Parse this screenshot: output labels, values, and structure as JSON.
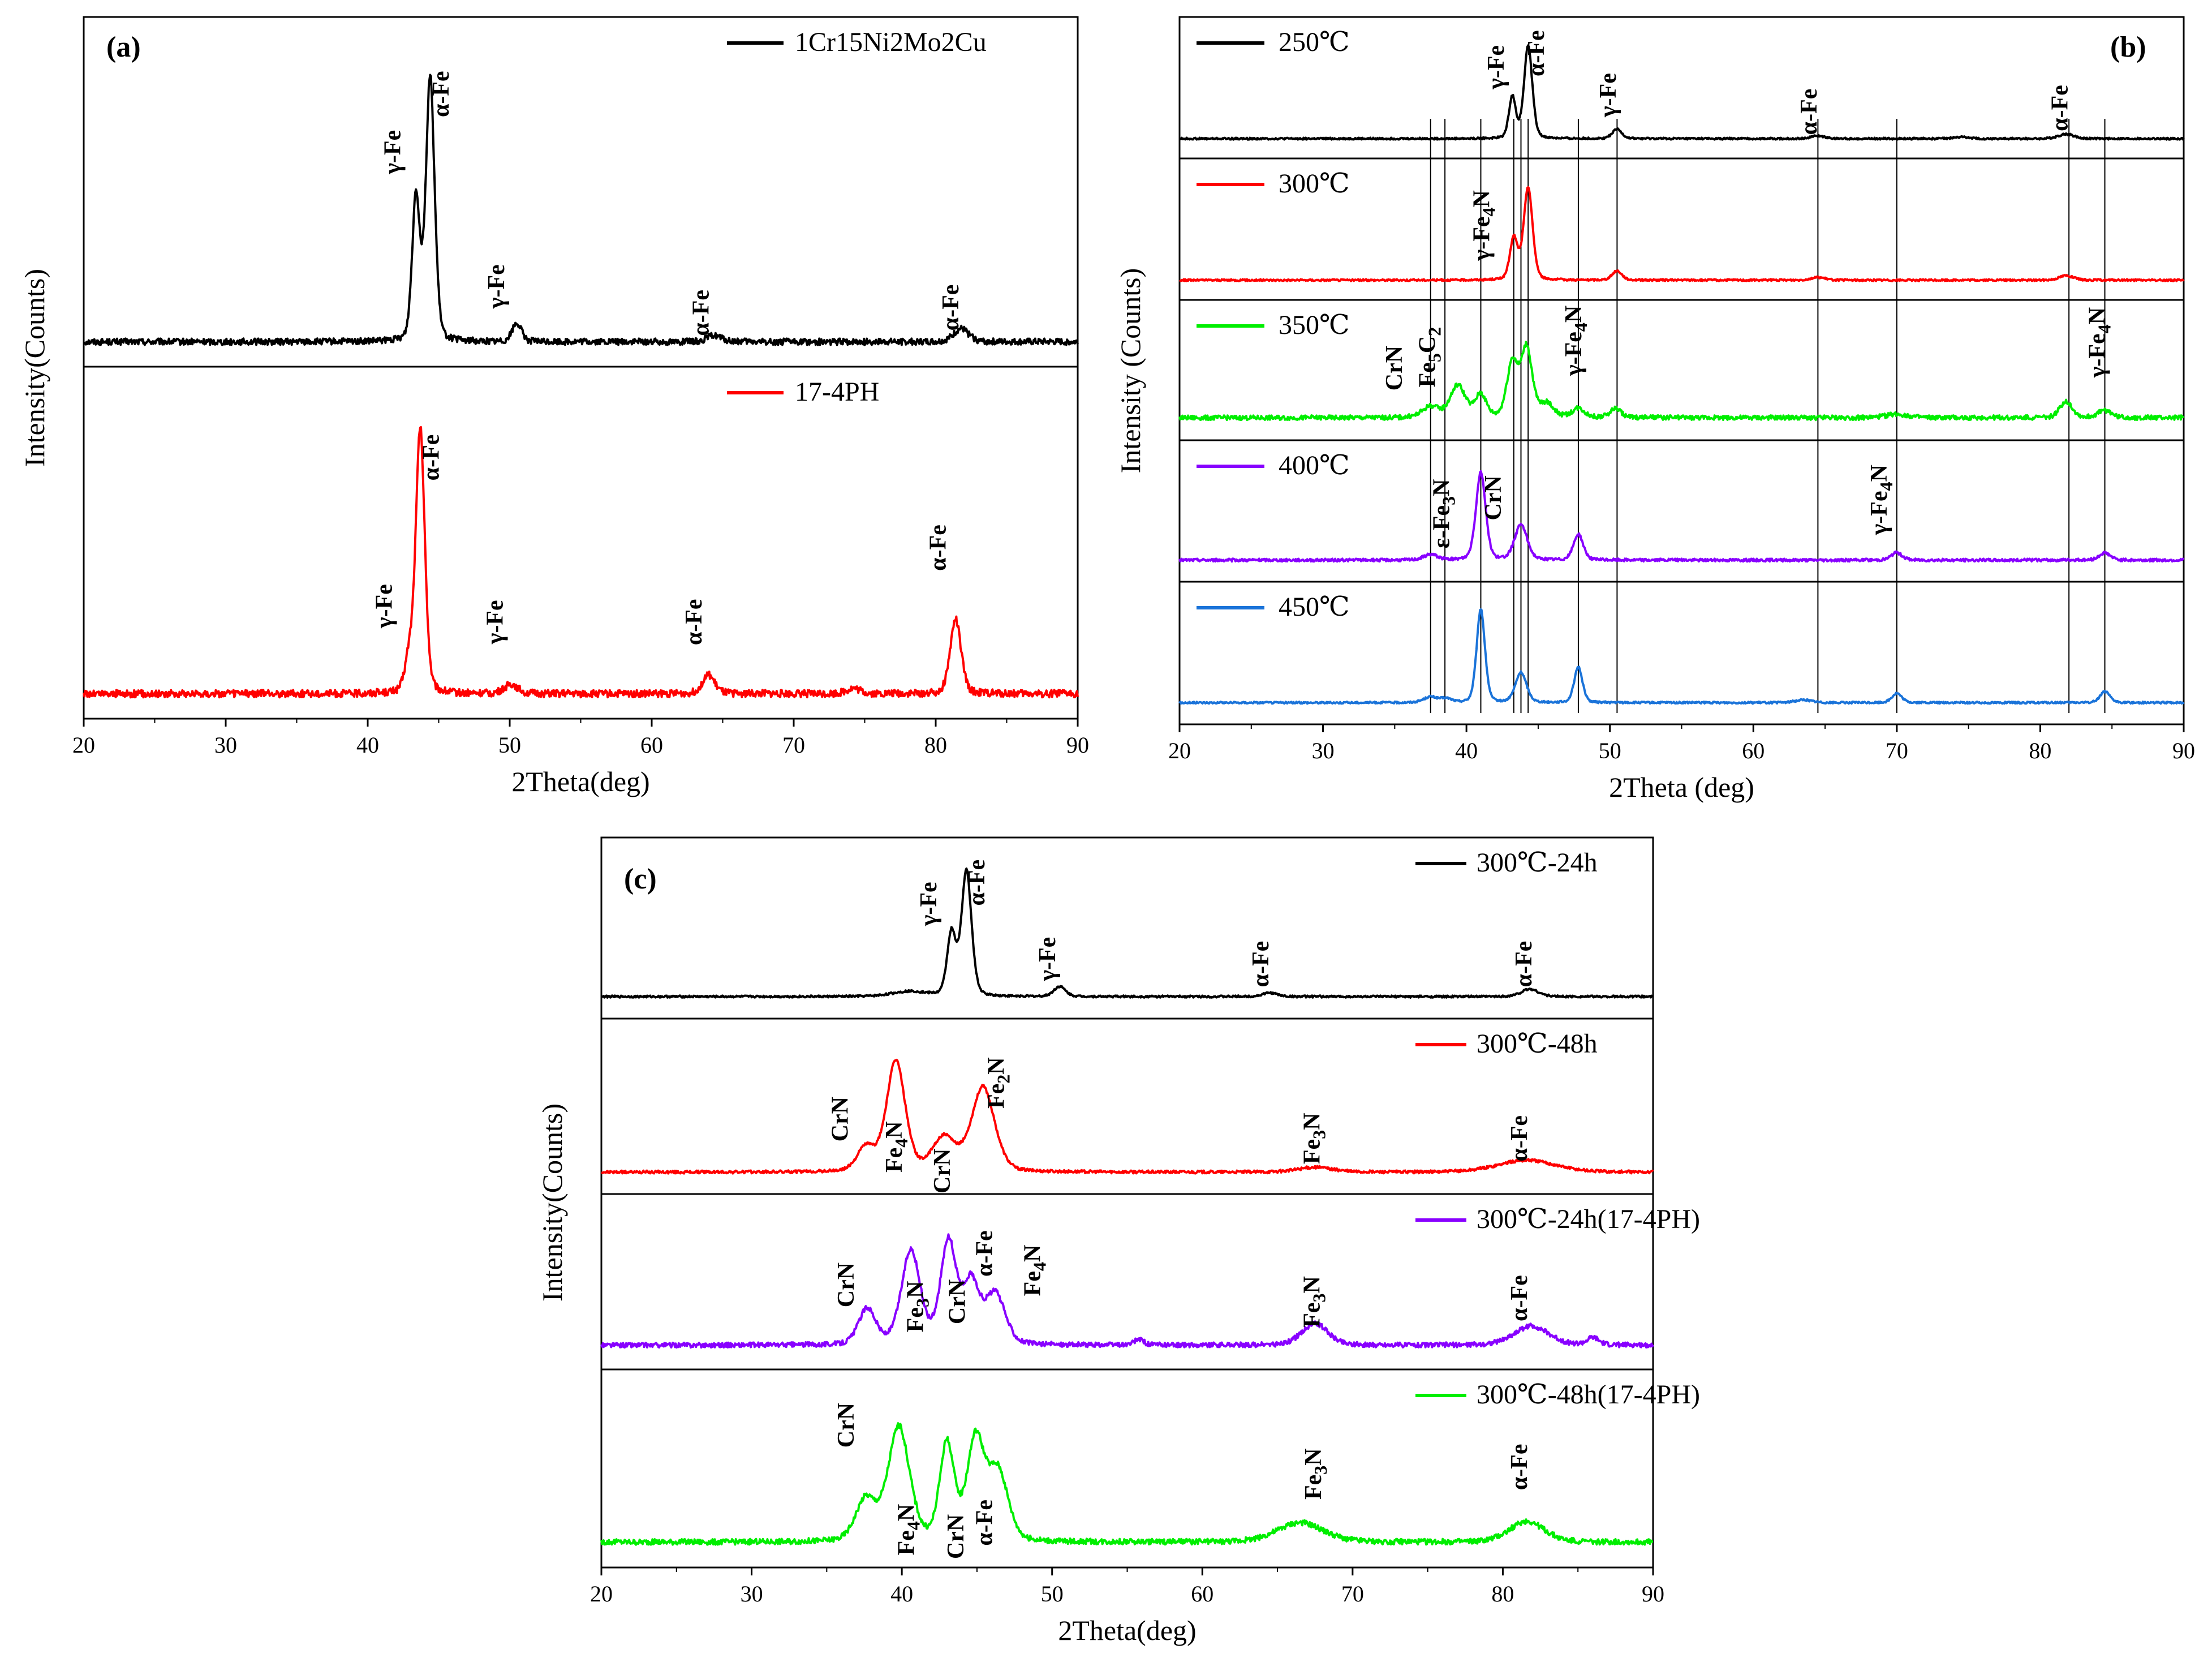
{
  "chart_data": [
    {
      "panel": "(a)",
      "type": "line",
      "xlabel": "2Theta(deg)",
      "ylabel": "Intensity(Counts)",
      "xlim": [
        20,
        90
      ],
      "xticks": [
        20,
        30,
        40,
        50,
        60,
        70,
        80,
        90
      ],
      "series": [
        {
          "name": "1Cr15Ni2Mo2Cu",
          "color": "#000000",
          "baseline": 0.03,
          "noise": 0.012,
          "peaks": [
            [
              43.4,
              0.55,
              0.28
            ],
            [
              44.4,
              1.0,
              0.32
            ],
            [
              50.5,
              0.07,
              0.35
            ],
            [
              64.4,
              0.025,
              0.5
            ],
            [
              81.8,
              0.05,
              0.55
            ]
          ],
          "annotations": [
            {
              "text": "γ-Fe",
              "x": 42.3,
              "level": 0.75,
              "rotate": -90
            },
            {
              "text": "α-Fe",
              "x": 45.7,
              "level": 0.97,
              "rotate": -90
            },
            {
              "text": "γ-Fe",
              "x": 49.6,
              "level": 0.24,
              "rotate": -90
            },
            {
              "text": "α-Fe",
              "x": 64.0,
              "level": 0.14,
              "rotate": -90
            },
            {
              "text": "α-Fe",
              "x": 81.6,
              "level": 0.16,
              "rotate": -90
            }
          ]
        },
        {
          "name": "17-4PH",
          "color": "#ff0000",
          "baseline": 0.03,
          "noise": 0.014,
          "peaks": [
            [
              42.9,
              0.12,
              0.3
            ],
            [
              43.7,
              1.0,
              0.33
            ],
            [
              50.1,
              0.035,
              0.5
            ],
            [
              64.0,
              0.07,
              0.45
            ],
            [
              74.2,
              0.02,
              0.5
            ],
            [
              81.4,
              0.28,
              0.4
            ]
          ],
          "annotations": [
            {
              "text": "γ-Fe",
              "x": 41.7,
              "level": 0.36,
              "rotate": -90
            },
            {
              "text": "α-Fe",
              "x": 45.0,
              "level": 0.92,
              "rotate": -90
            },
            {
              "text": "γ-Fe",
              "x": 49.5,
              "level": 0.3,
              "rotate": -90
            },
            {
              "text": "α-Fe",
              "x": 63.5,
              "level": 0.3,
              "rotate": -90
            },
            {
              "text": "α-Fe",
              "x": 80.7,
              "level": 0.58,
              "rotate": -90
            }
          ]
        }
      ]
    },
    {
      "panel": "(b)",
      "type": "line",
      "xlabel": "2Theta (deg)",
      "ylabel": "Intensity (Counts)",
      "xlim": [
        20,
        90
      ],
      "xticks": [
        20,
        30,
        40,
        50,
        60,
        70,
        80,
        90
      ],
      "reference_lines_2theta": [
        37.5,
        38.5,
        41.0,
        43.3,
        43.8,
        44.3,
        47.8,
        50.5,
        64.5,
        70.0,
        82.0,
        84.5
      ],
      "series": [
        {
          "name": "250℃",
          "color": "#000000",
          "baseline": 0.03,
          "noise": 0.01,
          "peaks": [
            [
              43.2,
              0.45,
              0.25
            ],
            [
              44.3,
              1.0,
              0.3
            ],
            [
              50.5,
              0.1,
              0.35
            ],
            [
              64.5,
              0.03,
              0.5
            ],
            [
              74.5,
              0.02,
              0.5
            ],
            [
              81.8,
              0.05,
              0.55
            ]
          ],
          "annotations": [
            {
              "text": "γ-Fe",
              "x": 42.6,
              "level": 0.8,
              "rotate": -90
            },
            {
              "text": "α-Fe",
              "x": 45.4,
              "level": 0.95,
              "rotate": -90
            },
            {
              "text": "γ-Fe",
              "x": 50.4,
              "level": 0.5,
              "rotate": -90
            },
            {
              "text": "α-Fe",
              "x": 64.4,
              "level": 0.32,
              "rotate": -90
            },
            {
              "text": "α-Fe",
              "x": 81.9,
              "level": 0.36,
              "rotate": -90
            }
          ]
        },
        {
          "name": "300℃",
          "color": "#ff0000",
          "baseline": 0.03,
          "noise": 0.01,
          "peaks": [
            [
              43.3,
              0.45,
              0.28
            ],
            [
              44.3,
              1.0,
              0.32
            ],
            [
              50.5,
              0.1,
              0.35
            ],
            [
              64.5,
              0.03,
              0.5
            ],
            [
              81.8,
              0.05,
              0.5
            ]
          ],
          "annotations": [
            {
              "text": "γ-Fe4N",
              "x": 41.6,
              "level": 0.62,
              "rotate": -90
            }
          ]
        },
        {
          "name": "350℃",
          "color": "#00ee00",
          "baseline": 0.06,
          "noise": 0.025,
          "peaks": [
            [
              37.5,
              0.12,
              0.6
            ],
            [
              39.4,
              0.35,
              0.55
            ],
            [
              41.0,
              0.25,
              0.4
            ],
            [
              43.2,
              0.6,
              0.4
            ],
            [
              44.2,
              0.75,
              0.4
            ],
            [
              45.6,
              0.15,
              0.5
            ],
            [
              47.8,
              0.1,
              0.45
            ],
            [
              50.4,
              0.1,
              0.4
            ],
            [
              70.0,
              0.04,
              0.8
            ],
            [
              81.8,
              0.18,
              0.45
            ],
            [
              84.5,
              0.08,
              0.5
            ]
          ],
          "annotations": [
            {
              "text": "CrN",
              "x": 35.5,
              "level": 0.6,
              "rotate": -90
            },
            {
              "text": "Fe5C2",
              "x": 37.8,
              "level": 0.72,
              "rotate": -90
            },
            {
              "text": "γ-Fe4N",
              "x": 48.0,
              "level": 0.9,
              "rotate": -90
            },
            {
              "text": "γ-Fe4N",
              "x": 84.5,
              "level": 0.88,
              "rotate": -90
            }
          ]
        },
        {
          "name": "400℃",
          "color": "#8800ff",
          "baseline": 0.05,
          "noise": 0.015,
          "peaks": [
            [
              37.5,
              0.06,
              0.5
            ],
            [
              41.0,
              0.95,
              0.35
            ],
            [
              43.8,
              0.38,
              0.45
            ],
            [
              47.8,
              0.28,
              0.35
            ],
            [
              70.0,
              0.08,
              0.4
            ],
            [
              84.5,
              0.08,
              0.4
            ]
          ],
          "annotations": [
            {
              "text": "ε-Fe3N",
              "x": 38.8,
              "level": 0.55,
              "rotate": -90
            },
            {
              "text": "CrN",
              "x": 42.4,
              "level": 0.72,
              "rotate": -90
            },
            {
              "text": "γ-Fe4N",
              "x": 69.3,
              "level": 0.7,
              "rotate": -90
            }
          ]
        },
        {
          "name": "450℃",
          "color": "#1a73d9",
          "baseline": 0.05,
          "noise": 0.01,
          "peaks": [
            [
              37.5,
              0.06,
              0.5
            ],
            [
              38.6,
              0.04,
              0.4
            ],
            [
              41.0,
              1.0,
              0.3
            ],
            [
              43.8,
              0.32,
              0.4
            ],
            [
              47.8,
              0.38,
              0.3
            ],
            [
              63.5,
              0.03,
              0.6
            ],
            [
              70.0,
              0.1,
              0.35
            ],
            [
              84.5,
              0.12,
              0.35
            ]
          ],
          "annotations": []
        }
      ]
    },
    {
      "panel": "(c)",
      "type": "line",
      "xlabel": "2Theta(deg)",
      "ylabel": "Intensity(Counts)",
      "xlim": [
        20,
        90
      ],
      "xticks": [
        20,
        30,
        40,
        50,
        60,
        70,
        80,
        90
      ],
      "series": [
        {
          "name": "300℃-24h",
          "color": "#000000",
          "baseline": 0.04,
          "noise": 0.008,
          "peaks": [
            [
              40.5,
              0.04,
              1.2
            ],
            [
              43.3,
              0.5,
              0.3
            ],
            [
              44.3,
              1.0,
              0.35
            ],
            [
              50.5,
              0.08,
              0.4
            ],
            [
              64.5,
              0.03,
              0.5
            ],
            [
              81.8,
              0.06,
              0.6
            ]
          ],
          "annotations": [
            {
              "text": "γ-Fe",
              "x": 42.3,
              "level": 0.78,
              "rotate": -90
            },
            {
              "text": "α-Fe",
              "x": 45.5,
              "level": 0.95,
              "rotate": -90
            },
            {
              "text": "γ-Fe",
              "x": 50.2,
              "level": 0.34,
              "rotate": -90
            },
            {
              "text": "α-Fe",
              "x": 64.4,
              "level": 0.3,
              "rotate": -90
            },
            {
              "text": "α-Fe",
              "x": 81.9,
              "level": 0.3,
              "rotate": -90
            }
          ]
        },
        {
          "name": "300℃-48h",
          "color": "#ff0000",
          "baseline": 0.04,
          "noise": 0.012,
          "peaks": [
            [
              37.6,
              0.2,
              0.6
            ],
            [
              39.6,
              0.92,
              0.65
            ],
            [
              42.8,
              0.28,
              0.8
            ],
            [
              45.4,
              0.7,
              0.8
            ],
            [
              67.5,
              0.04,
              1.2
            ],
            [
              81.6,
              0.1,
              2.0
            ]
          ],
          "annotations": [
            {
              "text": "CrN",
              "x": 36.4,
              "level": 0.48,
              "rotate": -90
            },
            {
              "text": "Fe4N",
              "x": 40.0,
              "level": 0.25,
              "rotate": -90
            },
            {
              "text": "CrN",
              "x": 43.2,
              "level": 0.05,
              "rotate": -90
            },
            {
              "text": "Fe2N",
              "x": 46.8,
              "level": 0.78,
              "rotate": -90
            },
            {
              "text": "Fe3N",
              "x": 67.8,
              "level": 0.32,
              "rotate": -90
            },
            {
              "text": "α-Fe",
              "x": 81.6,
              "level": 0.32,
              "rotate": -90
            }
          ]
        },
        {
          "name": "300℃-24h(17-4PH)",
          "color": "#8800ff",
          "baseline": 0.06,
          "noise": 0.02,
          "peaks": [
            [
              37.7,
              0.3,
              0.6
            ],
            [
              40.6,
              0.78,
              0.65
            ],
            [
              43.1,
              0.85,
              0.55
            ],
            [
              44.6,
              0.5,
              0.55
            ],
            [
              46.2,
              0.42,
              0.7
            ],
            [
              55.8,
              0.05,
              0.3
            ],
            [
              67.5,
              0.18,
              0.9
            ],
            [
              81.9,
              0.16,
              1.2
            ],
            [
              86.0,
              0.06,
              0.4
            ]
          ],
          "annotations": [
            {
              "text": "CrN",
              "x": 36.8,
              "level": 0.56,
              "rotate": -90
            },
            {
              "text": "Fe3N",
              "x": 41.4,
              "level": 0.38,
              "rotate": -90
            },
            {
              "text": "CrN",
              "x": 44.2,
              "level": 0.42,
              "rotate": -90
            },
            {
              "text": "α-Fe",
              "x": 46.0,
              "level": 0.82,
              "rotate": -90
            },
            {
              "text": "Fe4N",
              "x": 49.2,
              "level": 0.68,
              "rotate": -90
            },
            {
              "text": "Fe3N",
              "x": 67.8,
              "level": 0.42,
              "rotate": -90
            },
            {
              "text": "α-Fe",
              "x": 81.6,
              "level": 0.45,
              "rotate": -90
            }
          ]
        },
        {
          "name": "300℃-48h(17-4PH)",
          "color": "#00ee00",
          "baseline": 0.06,
          "noise": 0.02,
          "peaks": [
            [
              37.6,
              0.3,
              0.7
            ],
            [
              39.8,
              0.82,
              0.75
            ],
            [
              43.0,
              0.7,
              0.5
            ],
            [
              44.9,
              0.72,
              0.6
            ],
            [
              46.4,
              0.5,
              0.7
            ],
            [
              66.5,
              0.14,
              1.6
            ],
            [
              81.6,
              0.15,
              1.2
            ]
          ],
          "annotations": [
            {
              "text": "CrN",
              "x": 36.8,
              "level": 0.9,
              "rotate": -90
            },
            {
              "text": "Fe4N",
              "x": 40.8,
              "level": 0.15,
              "rotate": -90
            },
            {
              "text": "CrN",
              "x": 44.1,
              "level": 0.1,
              "rotate": -90
            },
            {
              "text": "α-Fe",
              "x": 46.0,
              "level": 0.2,
              "rotate": -90
            },
            {
              "text": "Fe3N",
              "x": 67.9,
              "level": 0.55,
              "rotate": -90
            },
            {
              "text": "α-Fe",
              "x": 81.6,
              "level": 0.6,
              "rotate": -90
            }
          ]
        }
      ]
    }
  ]
}
